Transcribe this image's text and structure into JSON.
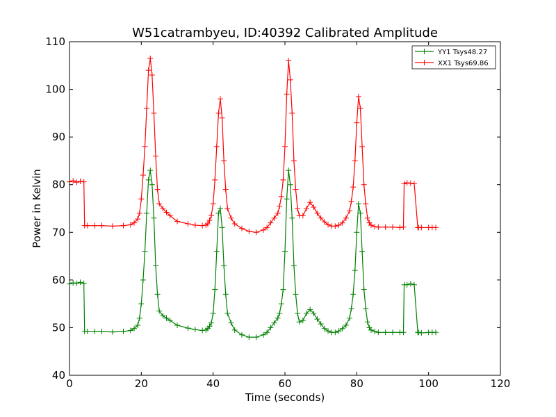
{
  "chart_data": {
    "type": "line",
    "title": "W51catrambyeu, ID:40392 Calibrated Amplitude",
    "xlabel": "Time (seconds)",
    "ylabel": "Power in Kelvin",
    "xlim": [
      0,
      120
    ],
    "ylim": [
      40,
      110
    ],
    "xticks": [
      "0",
      "20",
      "40",
      "60",
      "80",
      "100",
      "120"
    ],
    "yticks": [
      "40",
      "50",
      "60",
      "70",
      "80",
      "90",
      "100",
      "110"
    ],
    "grid": false,
    "legend_position": "top-right",
    "series": [
      {
        "name": "YY1 Tsys48.27",
        "color": "#008000",
        "x": [
          0,
          1,
          2,
          3,
          4,
          4.2,
          5,
          7,
          9,
          12,
          15,
          17,
          18,
          19,
          19.5,
          20,
          20.5,
          21,
          21.5,
          22,
          22.5,
          23,
          23.5,
          24,
          24.5,
          25,
          26,
          27,
          28,
          30,
          33,
          35,
          37,
          38,
          38.5,
          39,
          39.5,
          40,
          40.5,
          41,
          41.5,
          42,
          42.5,
          43,
          43.5,
          44,
          45,
          46,
          48,
          50,
          52,
          54,
          55,
          56,
          57,
          58,
          58.5,
          59,
          59.5,
          60,
          60.5,
          61,
          61.5,
          62,
          62.5,
          63,
          63.5,
          64,
          65,
          66,
          67,
          68,
          69,
          70,
          71,
          72,
          73,
          74,
          75,
          76,
          77,
          78,
          78.5,
          79,
          79.5,
          80,
          80.5,
          81,
          81.5,
          82,
          82.5,
          83,
          83.5,
          84,
          85,
          86,
          88,
          90,
          92,
          93,
          93.2,
          94,
          95,
          96,
          97,
          97.2,
          98,
          100,
          101,
          102
        ],
        "y": [
          59.2,
          59.4,
          59.3,
          59.5,
          59.3,
          49.2,
          49.2,
          49.2,
          49.2,
          49.1,
          49.2,
          49.4,
          49.8,
          50.5,
          52,
          55,
          60,
          66,
          74,
          81,
          83,
          80,
          73,
          63,
          57,
          53.5,
          52.5,
          52,
          51.5,
          50.5,
          49.9,
          49.6,
          49.4,
          49.5,
          49.8,
          50.3,
          51,
          53,
          58,
          66,
          74,
          75,
          71,
          63,
          57,
          53,
          51,
          49.5,
          48.5,
          48,
          48,
          48.5,
          49,
          50,
          51,
          52,
          53,
          55,
          58,
          66,
          77,
          83,
          80,
          73,
          63,
          57,
          53,
          51.2,
          51.5,
          53,
          53.8,
          53,
          51.8,
          50.8,
          49.8,
          49.3,
          49,
          49,
          49.3,
          49.8,
          50.5,
          52,
          54,
          57,
          62,
          70,
          76,
          74,
          66,
          58,
          54,
          51.2,
          50,
          49.5,
          49.2,
          49,
          49,
          49,
          49,
          49,
          59,
          59,
          59.2,
          59,
          49,
          49,
          48.9,
          49,
          49,
          49
        ]
      },
      {
        "name": "XX1 Tsys69.86",
        "color": "#ff0000",
        "x": [
          0,
          1,
          2,
          3,
          4,
          4.2,
          5,
          7,
          9,
          12,
          15,
          17,
          18,
          19,
          19.5,
          20,
          20.5,
          21,
          21.5,
          22,
          22.5,
          23,
          23.5,
          24,
          24.5,
          25,
          26,
          27,
          28,
          30,
          33,
          35,
          37,
          38,
          38.5,
          39,
          39.5,
          40,
          40.5,
          41,
          41.5,
          42,
          42.5,
          43,
          43.5,
          44,
          45,
          46,
          48,
          50,
          52,
          54,
          55,
          56,
          57,
          58,
          58.5,
          59,
          59.5,
          60,
          60.5,
          61,
          61.5,
          62,
          62.5,
          63,
          63.5,
          64,
          65,
          66,
          67,
          68,
          69,
          70,
          71,
          72,
          73,
          74,
          75,
          76,
          77,
          78,
          78.5,
          79,
          79.5,
          80,
          80.5,
          81,
          81.5,
          82,
          82.5,
          83,
          83.5,
          84,
          85,
          86,
          88,
          90,
          92,
          93,
          93.2,
          94,
          95,
          96,
          97,
          97.2,
          98,
          100,
          101,
          102
        ],
        "y": [
          80.6,
          80.8,
          80.5,
          80.7,
          80.6,
          71.4,
          71.4,
          71.4,
          71.4,
          71.3,
          71.4,
          71.6,
          72,
          72.8,
          74,
          77,
          82,
          88,
          96,
          104,
          106.5,
          103,
          95,
          86,
          79,
          76,
          75,
          74.2,
          73.5,
          72.3,
          71.8,
          71.5,
          71.4,
          71.5,
          71.8,
          72.5,
          73.5,
          76,
          81,
          88,
          95,
          98,
          94,
          85,
          79,
          75,
          73,
          71.8,
          70.8,
          70.2,
          70,
          70.5,
          71,
          72,
          73,
          74,
          75.5,
          77.5,
          81,
          88,
          99,
          106,
          102,
          95,
          85,
          79,
          75,
          73.5,
          73.5,
          75,
          76.3,
          75.3,
          74,
          73,
          72.2,
          71.6,
          71.3,
          71.3,
          71.5,
          72,
          73,
          74.5,
          76.5,
          79.5,
          85,
          93,
          98.5,
          96,
          88,
          80,
          76,
          73,
          72,
          71.5,
          71.2,
          71.1,
          71.1,
          71.1,
          71,
          71.1,
          80.2,
          80.4,
          80.3,
          80.2,
          71,
          71,
          71,
          71,
          71,
          71
        ]
      }
    ]
  }
}
